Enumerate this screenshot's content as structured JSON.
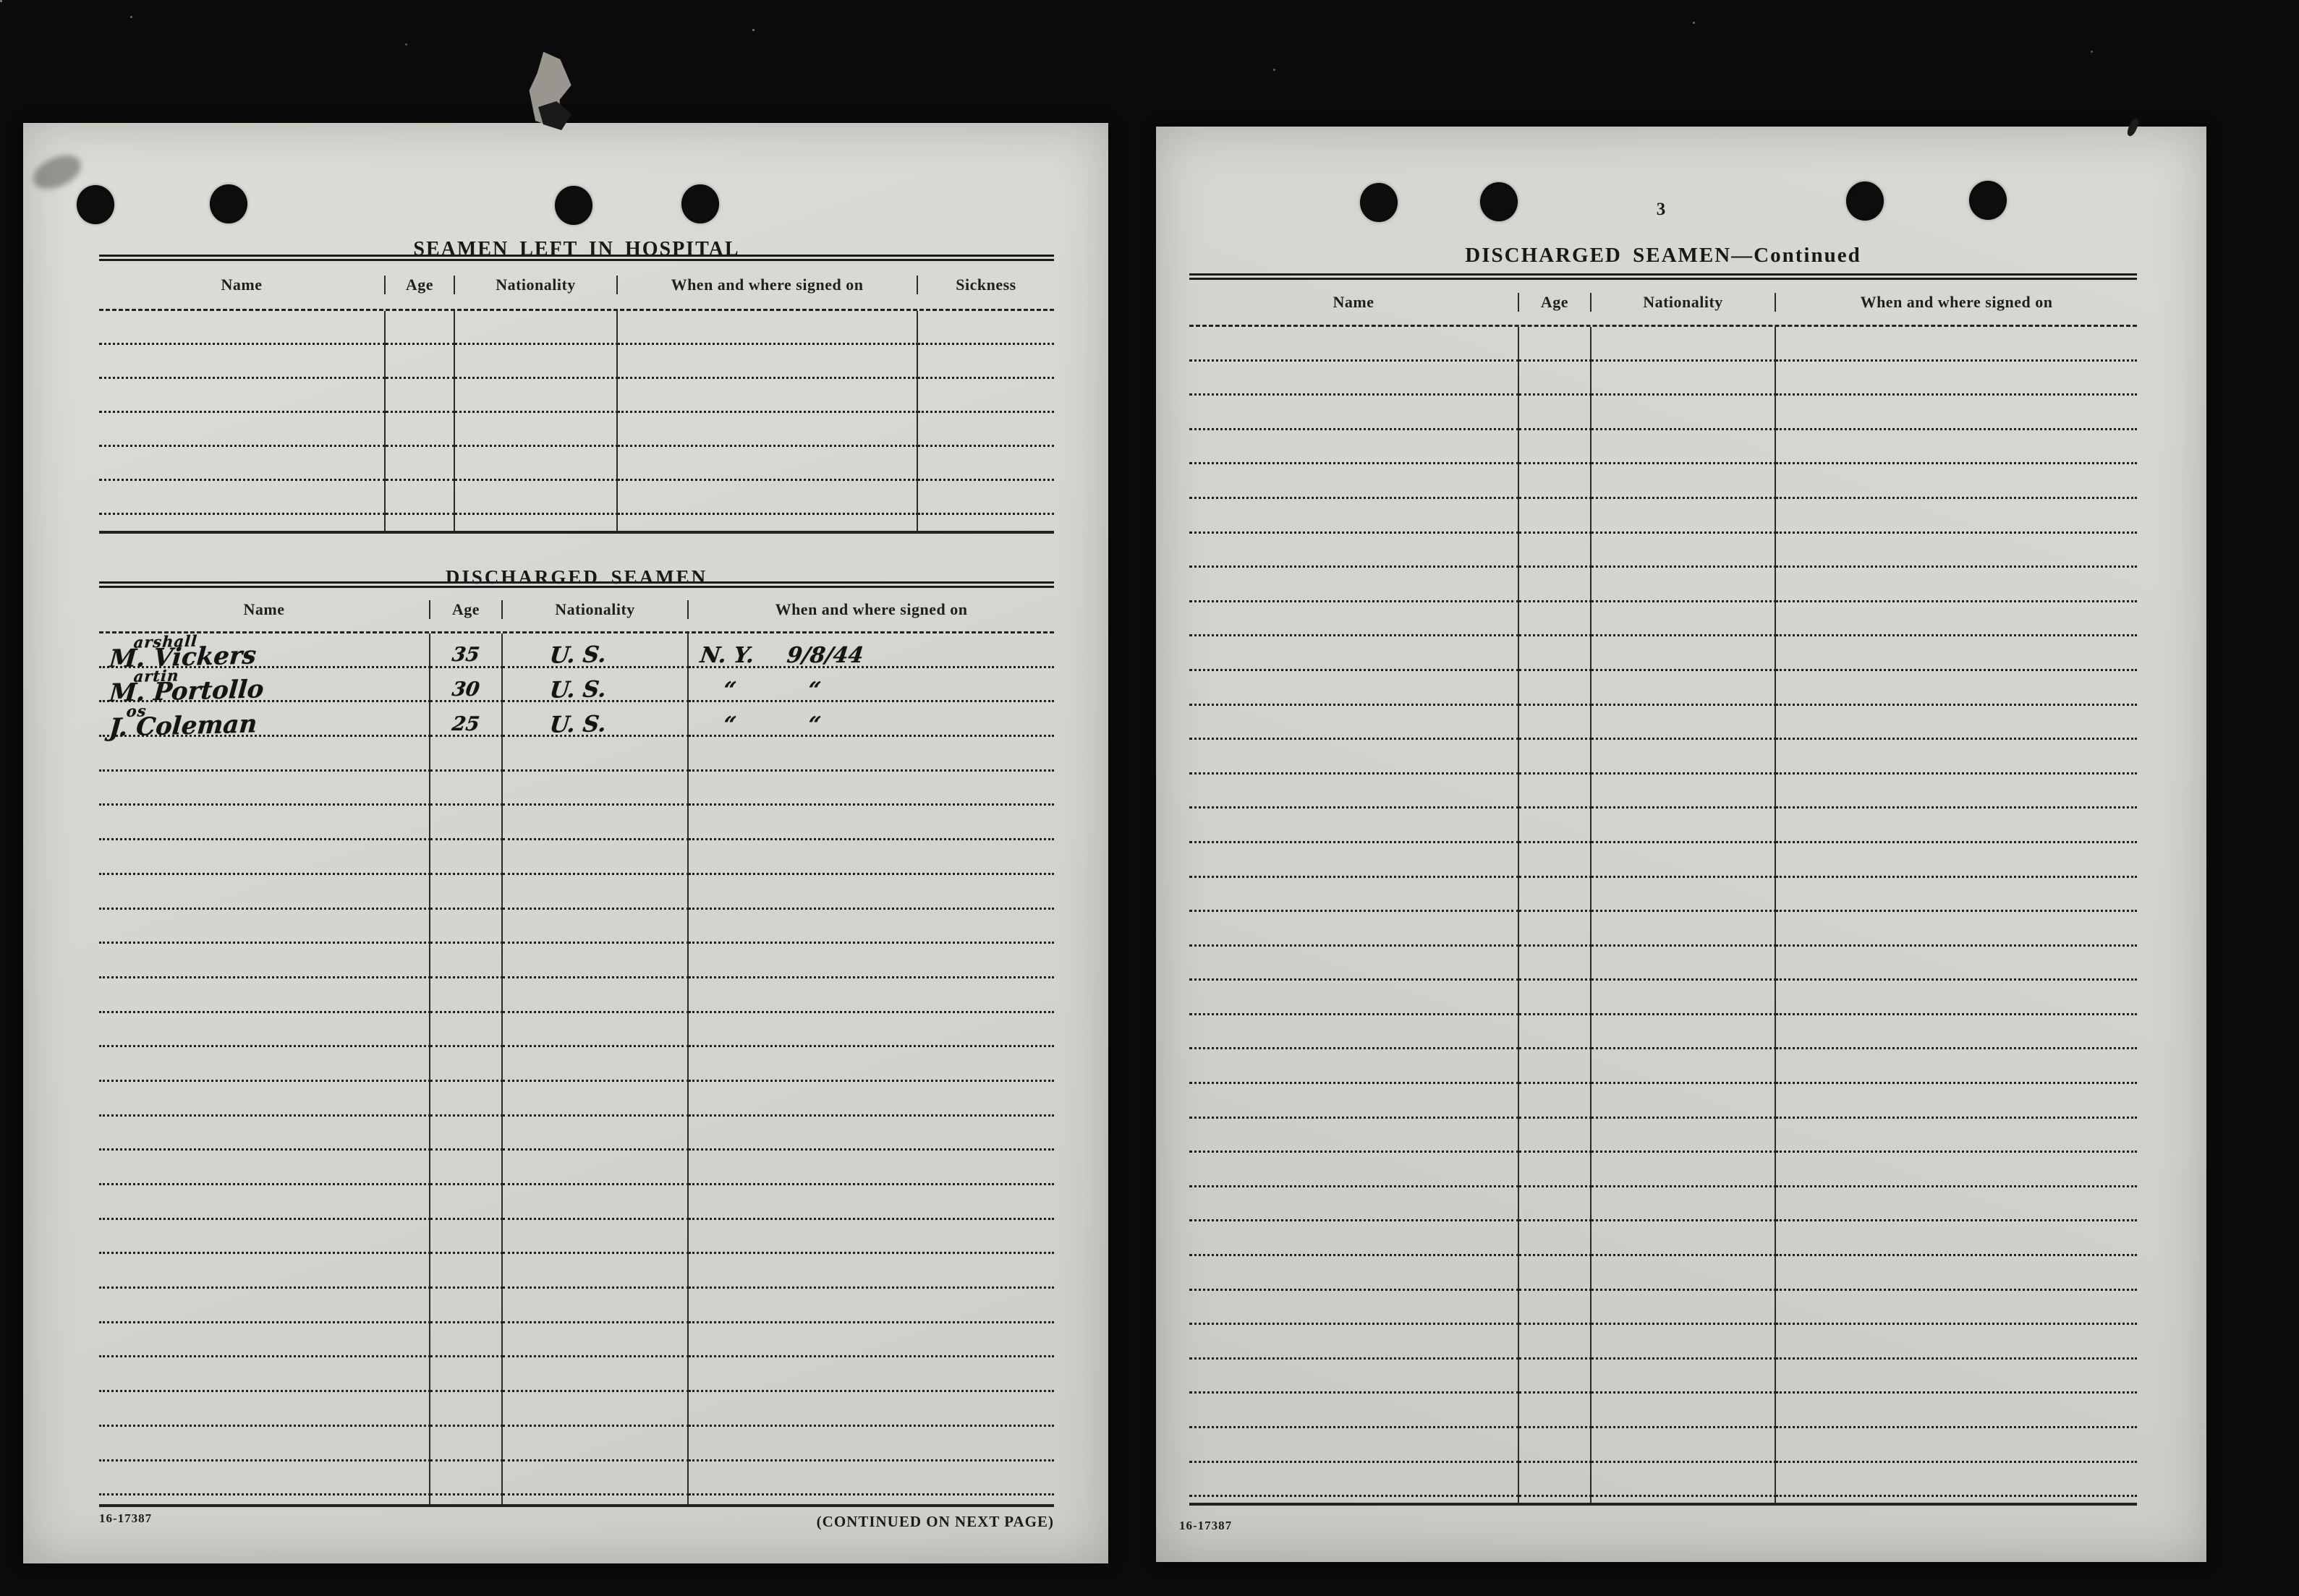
{
  "document": {
    "left_page": {
      "hospital": {
        "title": "SEAMEN LEFT IN HOSPITAL",
        "columns": [
          "Name",
          "Age",
          "Nationality",
          "When and where signed on",
          "Sickness"
        ],
        "blank_rows": 6
      },
      "discharged": {
        "title": "DISCHARGED SEAMEN",
        "columns": [
          "Name",
          "Age",
          "Nationality",
          "When and where signed on"
        ],
        "entries": [
          {
            "initial": "M.",
            "inserted": "arshall",
            "surname": "Vickers",
            "age": "35",
            "nationality": "U. S.",
            "signed_place": "N. Y.",
            "signed_date": "9/8/44"
          },
          {
            "initial": "M.",
            "inserted": "artin",
            "surname": "Portollo",
            "age": "30",
            "nationality": "U. S.",
            "signed_place": "“",
            "signed_date": "“"
          },
          {
            "initial": "J.",
            "inserted": "os",
            "surname": "Coleman",
            "age": "25",
            "nationality": "U. S.",
            "signed_place": "“",
            "signed_date": "“"
          }
        ],
        "blank_rows": 22
      },
      "form_number": "16-17387",
      "continued_note": "(CONTINUED ON NEXT PAGE)"
    },
    "right_page": {
      "page_number": "3",
      "title": "DISCHARGED SEAMEN—Continued",
      "columns": [
        "Name",
        "Age",
        "Nationality",
        "When and where signed on"
      ],
      "blank_rows": 34,
      "form_number": "16-17387"
    }
  }
}
